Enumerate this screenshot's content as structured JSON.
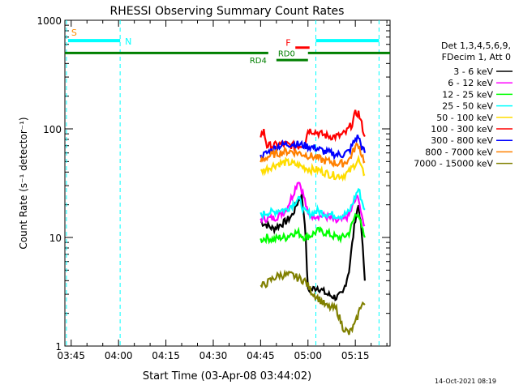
{
  "chart_data": {
    "type": "line",
    "title": "RHESSI Observing Summary Count Rates",
    "xlabel": "Start Time (03-Apr-08 03:44:02)",
    "ylabel": "Count Rate (s⁻¹ detector⁻¹)",
    "y_scale": "log",
    "ylim": [
      1,
      1000
    ],
    "xlim_minutes": [
      223,
      326
    ],
    "x_ticks": [
      "03:45",
      "04:00",
      "04:15",
      "04:30",
      "04:45",
      "05:00",
      "05:15"
    ],
    "x_tick_minutes": [
      225,
      240,
      255,
      270,
      285,
      300,
      315
    ],
    "y_ticks": [
      "1",
      "10",
      "100",
      "1000"
    ],
    "y_tick_values": [
      1,
      10,
      100,
      1000
    ],
    "timestamp": "14-Oct-2021 08:19",
    "legend_header": [
      "Det 1,3,4,5,6,9,",
      "FDecim 1, Att 0"
    ],
    "legend_position": "right",
    "flags": {
      "S": {
        "label": "S",
        "color": "#ff8c00",
        "time": 224
      },
      "N": {
        "label": "N",
        "color": "#00ffff"
      },
      "RD0": {
        "label": "RD0",
        "color": "#008000"
      },
      "RD4": {
        "label": "RD4",
        "color": "#008000"
      },
      "F": {
        "label": "F",
        "color": "#ff0000"
      }
    },
    "night_bars": [
      [
        224,
        240.5
      ],
      [
        302.5,
        322.5
      ]
    ],
    "night_bar_value": 650,
    "rd_bar_value": 500,
    "rd4_bar": [
      290,
      300
    ],
    "rd4_bar_value": 430,
    "flare_bar": [
      296,
      300.5
    ],
    "flare_bar_value": 560,
    "saa_lines": [
      223.5,
      240.5,
      302.5,
      322.5
    ],
    "series": [
      {
        "name": "3 - 6 keV",
        "color": "#000000",
        "points": [
          [
            285,
            14
          ],
          [
            287,
            13
          ],
          [
            289,
            12
          ],
          [
            291,
            13
          ],
          [
            293,
            14
          ],
          [
            295,
            16
          ],
          [
            297,
            22
          ],
          [
            298,
            24
          ],
          [
            299,
            14
          ],
          [
            300,
            3.2
          ],
          [
            303,
            3.5
          ],
          [
            306,
            3
          ],
          [
            309,
            2.8
          ],
          [
            311,
            3
          ],
          [
            313,
            5
          ],
          [
            315,
            15
          ],
          [
            316,
            20
          ],
          [
            317,
            11
          ],
          [
            318,
            4
          ]
        ]
      },
      {
        "name": "6 - 12 keV",
        "color": "#ff00ff",
        "points": [
          [
            285,
            15
          ],
          [
            287,
            15
          ],
          [
            289,
            15
          ],
          [
            291,
            16
          ],
          [
            293,
            18
          ],
          [
            295,
            24
          ],
          [
            297,
            34
          ],
          [
            298,
            28
          ],
          [
            299,
            22
          ],
          [
            300,
            16
          ],
          [
            303,
            16
          ],
          [
            306,
            15.5
          ],
          [
            309,
            14
          ],
          [
            311,
            14.5
          ],
          [
            313,
            16
          ],
          [
            315,
            22
          ],
          [
            316,
            24
          ],
          [
            317,
            15
          ],
          [
            318,
            13
          ]
        ]
      },
      {
        "name": "12 - 25 keV",
        "color": "#00ff00",
        "points": [
          [
            285,
            9.5
          ],
          [
            287,
            10
          ],
          [
            289,
            9.5
          ],
          [
            291,
            10
          ],
          [
            293,
            10
          ],
          [
            295,
            11
          ],
          [
            297,
            11
          ],
          [
            299,
            10
          ],
          [
            301,
            10.5
          ],
          [
            303,
            11.5
          ],
          [
            306,
            11
          ],
          [
            309,
            10
          ],
          [
            311,
            10
          ],
          [
            313,
            11
          ],
          [
            315,
            16
          ],
          [
            316,
            17
          ],
          [
            317,
            12
          ],
          [
            318,
            10
          ]
        ]
      },
      {
        "name": "25 - 50 keV",
        "color": "#00ffff",
        "points": [
          [
            285,
            16
          ],
          [
            287,
            17
          ],
          [
            289,
            17
          ],
          [
            291,
            18
          ],
          [
            293,
            18
          ],
          [
            295,
            20
          ],
          [
            297,
            23
          ],
          [
            299,
            17
          ],
          [
            301,
            16.5
          ],
          [
            303,
            17.5
          ],
          [
            306,
            16.5
          ],
          [
            309,
            16
          ],
          [
            311,
            16
          ],
          [
            313,
            17
          ],
          [
            315,
            24
          ],
          [
            316,
            28
          ],
          [
            317,
            22
          ],
          [
            318,
            18
          ]
        ]
      },
      {
        "name": "50 - 100 keV",
        "color": "#ffdd00",
        "points": [
          [
            285,
            40
          ],
          [
            287,
            43
          ],
          [
            289,
            46
          ],
          [
            291,
            48
          ],
          [
            293,
            49
          ],
          [
            295,
            48
          ],
          [
            297,
            46
          ],
          [
            299,
            44
          ],
          [
            301,
            42
          ],
          [
            303,
            42
          ],
          [
            305,
            40
          ],
          [
            307,
            38
          ],
          [
            309,
            37
          ],
          [
            311,
            37
          ],
          [
            313,
            40
          ],
          [
            315,
            48
          ],
          [
            316,
            52
          ],
          [
            317,
            42
          ],
          [
            318,
            38
          ]
        ]
      },
      {
        "name": "100 - 300 keV",
        "color": "#ff0000",
        "points": [
          [
            285,
            88
          ],
          [
            286,
            95
          ],
          [
            287,
            70
          ],
          [
            289,
            70
          ],
          [
            291,
            72
          ],
          [
            293,
            72
          ],
          [
            295,
            70
          ],
          [
            297,
            70
          ],
          [
            299,
            72
          ],
          [
            300,
            98
          ],
          [
            302,
            95
          ],
          [
            304,
            90
          ],
          [
            306,
            86
          ],
          [
            308,
            85
          ],
          [
            310,
            86
          ],
          [
            312,
            92
          ],
          [
            314,
            112
          ],
          [
            315,
            138
          ],
          [
            316,
            140
          ],
          [
            317,
            110
          ],
          [
            318,
            85
          ]
        ]
      },
      {
        "name": "300 - 800 keV",
        "color": "#0000ff",
        "points": [
          [
            285,
            55
          ],
          [
            287,
            60
          ],
          [
            289,
            65
          ],
          [
            291,
            70
          ],
          [
            293,
            72
          ],
          [
            295,
            73
          ],
          [
            297,
            72
          ],
          [
            299,
            70
          ],
          [
            301,
            68
          ],
          [
            303,
            66
          ],
          [
            305,
            62
          ],
          [
            307,
            60
          ],
          [
            309,
            58
          ],
          [
            311,
            58
          ],
          [
            313,
            62
          ],
          [
            315,
            80
          ],
          [
            316,
            85
          ],
          [
            317,
            68
          ],
          [
            318,
            60
          ]
        ]
      },
      {
        "name": "800 - 7000 keV",
        "color": "#ff8000",
        "points": [
          [
            285,
            50
          ],
          [
            287,
            55
          ],
          [
            289,
            58
          ],
          [
            291,
            60
          ],
          [
            293,
            62
          ],
          [
            295,
            62
          ],
          [
            297,
            60
          ],
          [
            299,
            58
          ],
          [
            301,
            56
          ],
          [
            303,
            54
          ],
          [
            305,
            51
          ],
          [
            307,
            50
          ],
          [
            309,
            48
          ],
          [
            311,
            48
          ],
          [
            313,
            52
          ],
          [
            315,
            68
          ],
          [
            316,
            72
          ],
          [
            317,
            58
          ],
          [
            318,
            50
          ]
        ]
      },
      {
        "name": "7000 - 15000 keV",
        "color": "#808000",
        "points": [
          [
            285,
            3.5
          ],
          [
            287,
            3.8
          ],
          [
            289,
            4.2
          ],
          [
            291,
            4.5
          ],
          [
            293,
            4.5
          ],
          [
            295,
            4.5
          ],
          [
            297,
            4.2
          ],
          [
            299,
            4
          ],
          [
            301,
            3.2
          ],
          [
            303,
            2.8
          ],
          [
            306,
            2.3
          ],
          [
            309,
            2.2
          ],
          [
            311,
            1.5
          ],
          [
            313,
            1.3
          ],
          [
            315,
            1.6
          ],
          [
            316,
            2
          ],
          [
            317,
            2.5
          ],
          [
            318,
            2.4
          ]
        ]
      }
    ]
  }
}
